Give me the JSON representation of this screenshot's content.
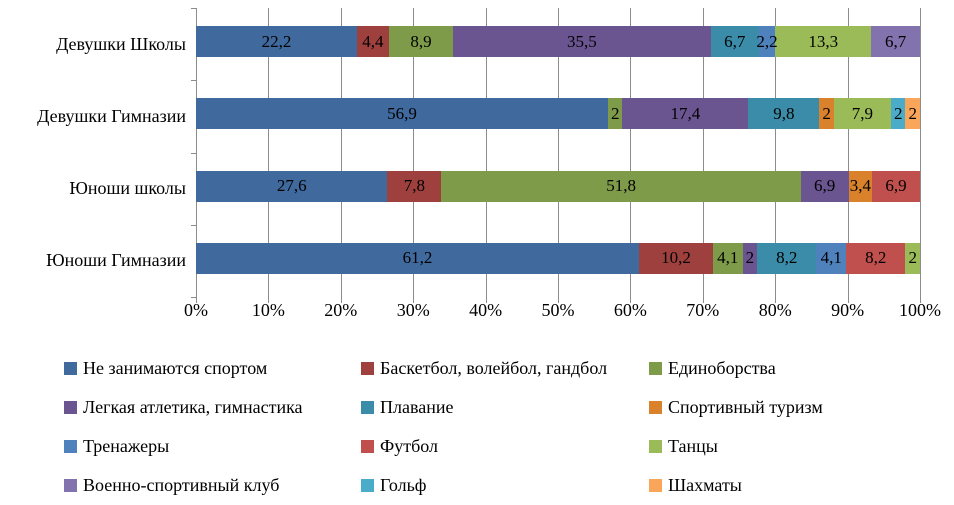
{
  "chart_data": {
    "type": "bar",
    "variant": "horizontal-stacked-100",
    "title": "",
    "xlabel": "",
    "ylabel": "",
    "x_axis": {
      "min": 0,
      "max": 100,
      "tick_labels": [
        "0%",
        "10%",
        "20%",
        "30%",
        "40%",
        "50%",
        "60%",
        "70%",
        "80%",
        "90%",
        "100%"
      ]
    },
    "grid": "vertical-gray",
    "legend_position": "bottom",
    "categories": [
      "Девушки Школы",
      "Девушки Гимназии",
      "Юноши школы",
      "Юноши Гимназии"
    ],
    "series": [
      {
        "name": "Не занимаются спортом",
        "color": "#40699E"
      },
      {
        "name": "Баскетбол, волейбол, гандбол",
        "color": "#9E413E"
      },
      {
        "name": "Единоборства",
        "color": "#7E9B49"
      },
      {
        "name": "Легкая атлетика, гимнастика",
        "color": "#6A5591"
      },
      {
        "name": "Плавание",
        "color": "#3A8CA8"
      },
      {
        "name": "Спортивный туризм",
        "color": "#D9822B"
      },
      {
        "name": "Тренажеры",
        "color": "#4F81BD"
      },
      {
        "name": "Футбол",
        "color": "#C0504D"
      },
      {
        "name": "Танцы",
        "color": "#9BBB59"
      },
      {
        "name": "Военно-спортивный клуб",
        "color": "#8273AE"
      },
      {
        "name": "Гольф",
        "color": "#4AACC8"
      },
      {
        "name": "Шахматы",
        "color": "#F9A65B"
      }
    ],
    "bars": [
      {
        "category": "Девушки Школы",
        "segments": [
          {
            "series": 0,
            "value": 22.2,
            "label": "22,2"
          },
          {
            "series": 1,
            "value": 4.4,
            "label": "4,4"
          },
          {
            "series": 2,
            "value": 8.9,
            "label": "8,9"
          },
          {
            "series": 3,
            "value": 35.5,
            "label": "35,5"
          },
          {
            "series": 4,
            "value": 6.7,
            "label": "6,7"
          },
          {
            "series": 6,
            "value": 2.2,
            "label": "2,2"
          },
          {
            "series": 8,
            "value": 13.3,
            "label": "13,3"
          },
          {
            "series": 9,
            "value": 6.7,
            "label": "6,7"
          }
        ]
      },
      {
        "category": "Девушки Гимназии",
        "segments": [
          {
            "series": 0,
            "value": 56.9,
            "label": "56,9"
          },
          {
            "series": 2,
            "value": 2,
            "label": "2"
          },
          {
            "series": 3,
            "value": 17.4,
            "label": "17,4"
          },
          {
            "series": 4,
            "value": 9.8,
            "label": "9,8"
          },
          {
            "series": 5,
            "value": 2,
            "label": "2"
          },
          {
            "series": 8,
            "value": 7.9,
            "label": "7,9"
          },
          {
            "series": 10,
            "value": 2,
            "label": "2"
          },
          {
            "series": 11,
            "value": 2,
            "label": "2"
          }
        ]
      },
      {
        "category": "Юноши школы",
        "segments": [
          {
            "series": 0,
            "value": 27.6,
            "label": "27,6"
          },
          {
            "series": 1,
            "value": 7.8,
            "label": "7,8"
          },
          {
            "series": 2,
            "value": 51.8,
            "label": "51,8"
          },
          {
            "series": 3,
            "value": 6.9,
            "label": "6,9"
          },
          {
            "series": 5,
            "value": 3.4,
            "label": "3,4"
          },
          {
            "series": 7,
            "value": 6.9,
            "label": "6,9"
          }
        ]
      },
      {
        "category": "Юноши Гимназии",
        "segments": [
          {
            "series": 0,
            "value": 61.2,
            "label": "61,2"
          },
          {
            "series": 1,
            "value": 10.2,
            "label": "10,2"
          },
          {
            "series": 2,
            "value": 4.1,
            "label": "4,1"
          },
          {
            "series": 3,
            "value": 2,
            "label": "2"
          },
          {
            "series": 4,
            "value": 8.2,
            "label": "8,2"
          },
          {
            "series": 6,
            "value": 4.1,
            "label": "4,1"
          },
          {
            "series": 7,
            "value": 8.2,
            "label": "8,2"
          },
          {
            "series": 8,
            "value": 2,
            "label": "2"
          }
        ]
      }
    ]
  }
}
